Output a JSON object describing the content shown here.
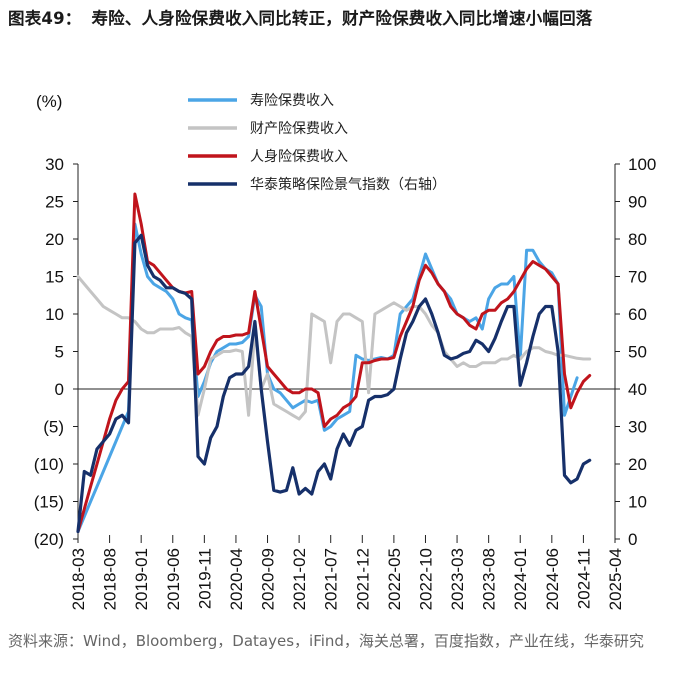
{
  "header": {
    "label": "图表49：",
    "text": "寿险、人身险保费收入同比转正，财产险保费收入同比增速小幅回落"
  },
  "footer": {
    "source": "资料来源：Wind，Bloomberg，Datayes，iFind，海关总署，百度指数，产业在线，华泰研究"
  },
  "chart_data": {
    "type": "line",
    "title": "寿险、人身险保费收入同比转正，财产险保费收入同比增速小幅回落",
    "y_left_label": "(%)",
    "y_left_range": [
      -20,
      30
    ],
    "y_left_ticks": [
      30,
      25,
      20,
      15,
      10,
      5,
      0,
      -5,
      -10,
      -15,
      -20
    ],
    "y_left_tick_labels": [
      "30",
      "25",
      "20",
      "15",
      "10",
      "5",
      "0",
      "(5)",
      "(10)",
      "(15)",
      "(20)"
    ],
    "y_right_range": [
      0,
      100
    ],
    "y_right_ticks": [
      100,
      90,
      80,
      70,
      60,
      50,
      40,
      30,
      20,
      10,
      0
    ],
    "y_right_tick_labels": [
      "100",
      "90",
      "80",
      "70",
      "60",
      "50",
      "40",
      "30",
      "20",
      "10",
      "0"
    ],
    "x_range": [
      0,
      85
    ],
    "x_ticks": [
      0,
      5,
      10,
      15,
      20,
      25,
      30,
      35,
      40,
      45,
      50,
      55,
      60,
      65,
      70,
      75,
      80,
      85
    ],
    "x_tick_labels": [
      "2018-03",
      "2018-08",
      "2019-01",
      "2019-06",
      "2019-11",
      "2020-04",
      "2020-09",
      "2021-02",
      "2021-07",
      "2021-12",
      "2022-05",
      "2022-10",
      "2023-03",
      "2023-08",
      "2024-01",
      "2024-06",
      "2024-11",
      "2025-04"
    ],
    "series": [
      {
        "name": "寿险保费收入",
        "axis": "left",
        "color": "#4ba5e6",
        "x": [
          0,
          1,
          2,
          3,
          4,
          5,
          6,
          7,
          8,
          9,
          10,
          11,
          12,
          13,
          14,
          15,
          16,
          17,
          18,
          19,
          20,
          21,
          22,
          23,
          24,
          25,
          26,
          27,
          28,
          29,
          30,
          31,
          32,
          33,
          34,
          35,
          36,
          37,
          38,
          39,
          40,
          41,
          42,
          43,
          44,
          45,
          46,
          47,
          48,
          49,
          50,
          51,
          52,
          53,
          54,
          55,
          56,
          57,
          58,
          59,
          60,
          61,
          62,
          63,
          64,
          65,
          66,
          67,
          68,
          69,
          70,
          71,
          72,
          73,
          74,
          75,
          76,
          77,
          78,
          79,
          80,
          81,
          82,
          83,
          84,
          85
        ],
        "values": [
          -19,
          -17,
          -15,
          -13,
          -11,
          -9,
          -7,
          -5,
          -3,
          22,
          18,
          15,
          14,
          13.5,
          13,
          12,
          10,
          9.5,
          9.2,
          -1,
          1,
          3.5,
          5,
          5.5,
          6,
          6,
          6.2,
          7,
          12.5,
          11,
          2,
          0,
          -0.5,
          -1.5,
          -2.5,
          -2,
          -1.5,
          -1.8,
          -1.5,
          -5.5,
          -5,
          -4,
          -3.5,
          -3,
          4.5,
          4,
          3.8,
          4,
          4.2,
          4,
          4.5,
          10,
          11,
          12,
          15,
          18,
          16,
          14,
          13,
          12,
          10,
          9.5,
          9,
          9.5,
          8,
          12,
          13.5,
          14,
          14,
          15,
          4,
          18.5,
          18.5,
          17,
          16,
          15.5,
          14,
          -3.5,
          -1,
          1.5,
          null,
          null,
          null,
          null,
          null,
          null
        ]
      },
      {
        "name": "财产险保费收入",
        "axis": "left",
        "color": "#c4c4c4",
        "x": [
          0,
          1,
          2,
          3,
          4,
          5,
          6,
          7,
          8,
          9,
          10,
          11,
          12,
          13,
          14,
          15,
          16,
          17,
          18,
          19,
          20,
          21,
          22,
          23,
          24,
          25,
          26,
          27,
          28,
          29,
          30,
          31,
          32,
          33,
          34,
          35,
          36,
          37,
          38,
          39,
          40,
          41,
          42,
          43,
          44,
          45,
          46,
          47,
          48,
          49,
          50,
          51,
          52,
          53,
          54,
          55,
          56,
          57,
          58,
          59,
          60,
          61,
          62,
          63,
          64,
          65,
          66,
          67,
          68,
          69,
          70,
          71,
          72,
          73,
          74,
          75,
          76,
          77,
          78,
          79,
          80,
          81
        ],
        "values": [
          15,
          14,
          13,
          12,
          11,
          10.5,
          10,
          9.5,
          9.5,
          9,
          8,
          7.5,
          7.5,
          8,
          8,
          8,
          8.2,
          7.5,
          7,
          -3.5,
          0,
          4,
          4.5,
          5,
          5,
          5.2,
          5,
          -3.5,
          8,
          0,
          2,
          -2,
          -2.5,
          -3,
          -3.5,
          -4,
          -3,
          10,
          9.5,
          9,
          3.5,
          9,
          10,
          10,
          9.5,
          9,
          -0.5,
          10,
          10.5,
          11,
          11.5,
          11,
          10.5,
          11,
          11,
          10,
          8.5,
          7.5,
          5,
          4,
          3,
          3.5,
          3,
          3,
          3.5,
          3.5,
          3.5,
          4,
          4,
          4.5,
          4,
          5,
          5.5,
          5.5,
          5,
          4.8,
          4.5,
          4.5,
          4.3,
          4.1,
          4,
          4
        ]
      },
      {
        "name": "人身险保费收入",
        "axis": "left",
        "color": "#c0141c",
        "x": [
          0,
          1,
          2,
          3,
          4,
          5,
          6,
          7,
          8,
          9,
          10,
          11,
          12,
          13,
          14,
          15,
          16,
          17,
          18,
          19,
          20,
          21,
          22,
          23,
          24,
          25,
          26,
          27,
          28,
          29,
          30,
          31,
          32,
          33,
          34,
          35,
          36,
          37,
          38,
          39,
          40,
          41,
          42,
          43,
          44,
          45,
          46,
          47,
          48,
          49,
          50,
          51,
          52,
          53,
          54,
          55,
          56,
          57,
          58,
          59,
          60,
          61,
          62,
          63,
          64,
          65,
          66,
          67,
          68,
          69,
          70,
          71,
          72,
          73,
          74,
          75,
          76,
          77,
          78,
          79,
          80,
          81
        ],
        "values": [
          -19,
          -16,
          -13,
          -10,
          -7,
          -4,
          -1.5,
          0,
          1,
          26,
          22,
          17,
          16.5,
          15.5,
          14.5,
          13.5,
          13,
          12.8,
          13,
          2,
          3,
          5,
          6.5,
          7,
          7,
          7.2,
          7.2,
          7.5,
          13,
          8,
          3,
          2,
          1,
          0,
          -0.5,
          -0.5,
          0,
          0,
          -0.5,
          -5,
          -4,
          -3.5,
          -2.5,
          -2,
          -1,
          3.5,
          3.5,
          3.8,
          4,
          4,
          4.2,
          7,
          9,
          11,
          14.5,
          16.5,
          15.5,
          14,
          13,
          11,
          10,
          9.5,
          8.5,
          8,
          10,
          10.5,
          10.5,
          11.5,
          12,
          13,
          14.5,
          16,
          17,
          16.5,
          16,
          15,
          14,
          2,
          -2.5,
          -0.5,
          1,
          1.8
        ]
      },
      {
        "name": "华泰策略保险景气指数（右轴）",
        "axis": "right",
        "color": "#16306a",
        "x": [
          0,
          1,
          2,
          3,
          4,
          5,
          6,
          7,
          8,
          9,
          10,
          11,
          12,
          13,
          14,
          15,
          16,
          17,
          18,
          19,
          20,
          21,
          22,
          23,
          24,
          25,
          26,
          27,
          28,
          29,
          30,
          31,
          32,
          33,
          34,
          35,
          36,
          37,
          38,
          39,
          40,
          41,
          42,
          43,
          44,
          45,
          46,
          47,
          48,
          49,
          50,
          51,
          52,
          53,
          54,
          55,
          56,
          57,
          58,
          59,
          60,
          61,
          62,
          63,
          64,
          65,
          66,
          67,
          68,
          69,
          70,
          71,
          72,
          73,
          74,
          75,
          76,
          77,
          78,
          79,
          80,
          81,
          82,
          83,
          84,
          85
        ],
        "values": [
          2,
          18,
          17,
          24,
          26,
          28,
          32,
          33,
          31,
          79,
          81,
          73,
          70,
          69,
          67,
          67,
          66,
          65.5,
          64,
          22,
          20,
          27,
          30,
          38,
          43,
          44,
          44,
          46,
          58,
          40,
          26,
          13,
          12.5,
          13,
          19,
          12,
          13.5,
          12,
          18,
          20,
          16,
          24,
          28,
          25,
          29,
          30,
          37,
          38,
          38,
          38.5,
          40,
          48,
          55,
          58,
          62,
          64,
          60,
          55,
          49,
          48,
          48.5,
          49.5,
          50,
          53,
          52,
          50,
          53.5,
          58,
          62,
          62,
          41,
          47,
          54,
          60,
          62,
          62,
          50,
          17,
          15,
          16,
          20,
          21,
          null,
          null,
          null,
          null
        ]
      }
    ],
    "legend": [
      "寿险保费收入",
      "财产险保费收入",
      "人身险保费收入",
      "华泰策略保险景气指数（右轴）"
    ],
    "legend_position": "top-center",
    "grid": false
  }
}
